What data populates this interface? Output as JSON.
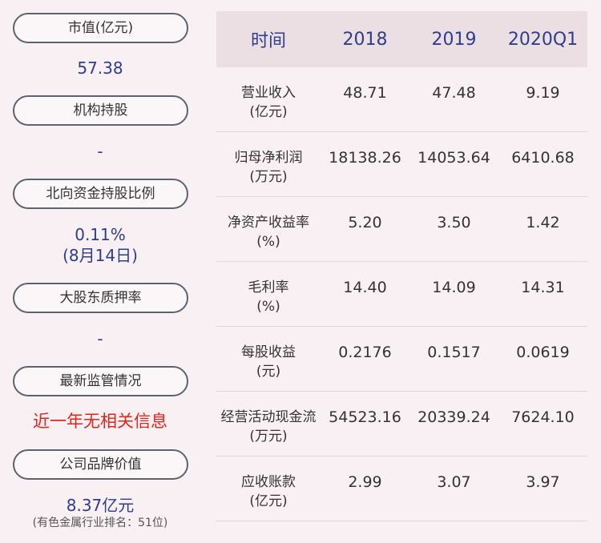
{
  "left": {
    "market_cap_label": "市值(亿元)",
    "market_cap_value": "57.38",
    "institution_label": "机构持股",
    "institution_value": "-",
    "northbound_label": "北向资金持股比例",
    "northbound_value": "0.11%",
    "northbound_date": "(8月14日)",
    "pledge_label": "大股东质押率",
    "pledge_value": "-",
    "regulation_label": "最新监管情况",
    "regulation_value": "近一年无相关信息",
    "brand_label": "公司品牌价值",
    "brand_value": "8.37亿元",
    "brand_rank": "(有色金属行业排名：51位)"
  },
  "table": {
    "headers": [
      "时间",
      "2018",
      "2019",
      "2020Q1"
    ],
    "rows": [
      {
        "name": "营业收入",
        "unit": "(亿元)",
        "values": [
          "48.71",
          "47.48",
          "9.19"
        ]
      },
      {
        "name": "归母净利润",
        "unit": "(万元)",
        "values": [
          "18138.26",
          "14053.64",
          "6410.68"
        ]
      },
      {
        "name": "净资产收益率",
        "unit": "(%)",
        "values": [
          "5.20",
          "3.50",
          "1.42"
        ]
      },
      {
        "name": "毛利率",
        "unit": "(%)",
        "values": [
          "14.40",
          "14.09",
          "14.31"
        ]
      },
      {
        "name": "每股收益",
        "unit": "(元)",
        "values": [
          "0.2176",
          "0.1517",
          "0.0619"
        ]
      },
      {
        "name": "经营活动现金流",
        "unit": "(万元)",
        "values": [
          "54523.16",
          "20339.24",
          "7624.10"
        ]
      },
      {
        "name": "应收账款",
        "unit": "(亿元)",
        "values": [
          "2.99",
          "3.07",
          "3.97"
        ]
      }
    ]
  },
  "colors": {
    "background": "#f8f0f2",
    "value_blue": "#2e3d8f",
    "alert_red": "#e3241b",
    "header_bg": "#ecdfe3"
  }
}
